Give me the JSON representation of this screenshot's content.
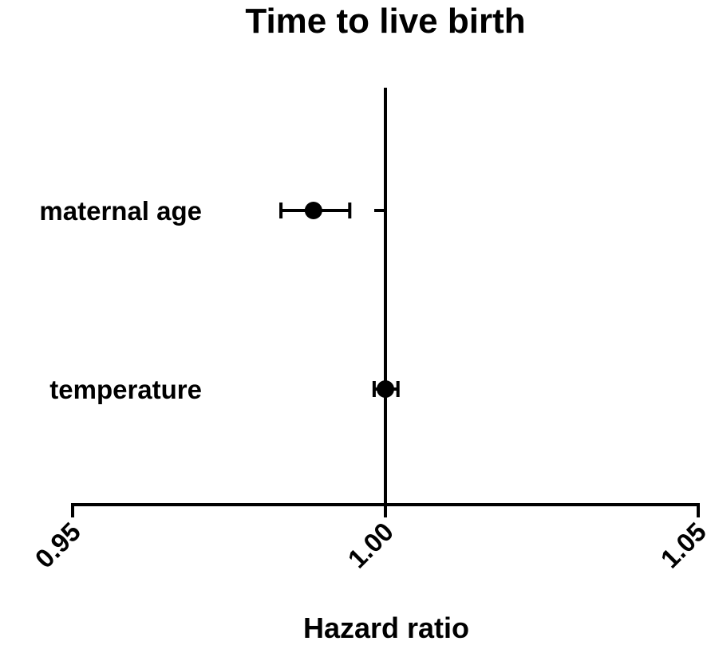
{
  "chart_data": {
    "type": "scatter",
    "subtype": "forest-plot",
    "title": "Time to live birth",
    "xlabel": "Hazard ratio",
    "ylabel": "",
    "xlim": [
      0.95,
      1.05
    ],
    "x_ticks": [
      0.95,
      1.0,
      1.05
    ],
    "x_tick_labels": [
      "0.95",
      "1.00",
      "1.05"
    ],
    "reference_line": 1.0,
    "grid": false,
    "legend": "none",
    "colors": {
      "marker": "#000000",
      "axis": "#000000"
    },
    "categories": [
      "maternal age",
      "temperature"
    ],
    "estimates": [
      {
        "label": "maternal age",
        "hr": 0.9885,
        "ci_low": 0.9833,
        "ci_high": 0.9943
      },
      {
        "label": "temperature",
        "hr": 1.0,
        "ci_low": 0.9982,
        "ci_high": 1.002
      }
    ]
  }
}
